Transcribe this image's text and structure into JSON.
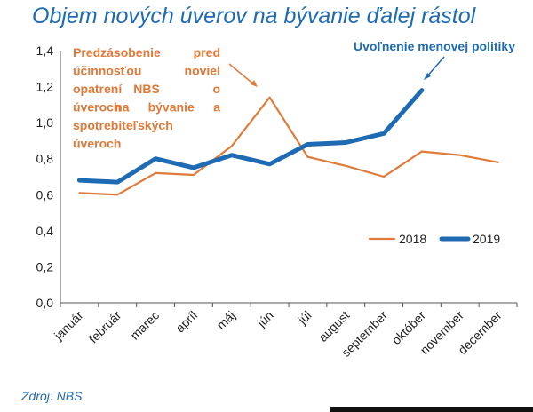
{
  "title": "Objem nových úverov na bývanie ďalej rástol",
  "source": "Zdroj: NBS",
  "chart_data": {
    "type": "line",
    "categories": [
      "január",
      "február",
      "marec",
      "apríl",
      "máj",
      "jún",
      "júl",
      "august",
      "september",
      "október",
      "november",
      "december"
    ],
    "series": [
      {
        "name": "2018",
        "color": "#e07a3a",
        "values": [
          0.61,
          0.6,
          0.72,
          0.71,
          0.87,
          1.14,
          0.81,
          0.76,
          0.7,
          0.84,
          0.82,
          0.78
        ]
      },
      {
        "name": "2019",
        "color": "#1f6bb3",
        "values": [
          0.68,
          0.67,
          0.8,
          0.75,
          0.82,
          0.77,
          0.88,
          0.89,
          0.94,
          1.18,
          null,
          null
        ]
      }
    ],
    "ylim": [
      0,
      1.4
    ],
    "yticks": [
      "0,0",
      "0,2",
      "0,4",
      "0,6",
      "0,8",
      "1,0",
      "1,2",
      "1,4"
    ],
    "grid": false,
    "legend": "lower-right",
    "annotations": {
      "orange_lines": [
        [
          "Predzásobenie",
          "pred"
        ],
        [
          "účinnosťou",
          "noviel"
        ],
        [
          "opatrení",
          "NBS",
          "o"
        ],
        [
          "úveroch",
          "na",
          "bývanie",
          "a"
        ],
        [
          "spotrebiteľských"
        ],
        [
          "úveroch"
        ]
      ],
      "blue": "Uvoľnenie menovej politiky"
    }
  }
}
